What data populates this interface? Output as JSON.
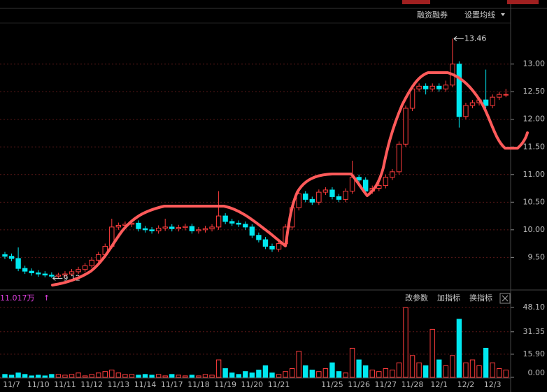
{
  "toolbar": {
    "margin": "融资融券",
    "ma_setting": "设置均线"
  },
  "chart_data": [
    {
      "type": "candlestick",
      "categories": [
        null,
        "11/7",
        null,
        null,
        null,
        "11/10",
        null,
        null,
        null,
        "11/11",
        null,
        null,
        null,
        "11/12",
        null,
        null,
        null,
        "11/13",
        null,
        null,
        null,
        "11/14",
        null,
        null,
        null,
        "11/17",
        null,
        null,
        null,
        "11/18",
        null,
        null,
        null,
        "11/19",
        null,
        null,
        null,
        "11/20",
        null,
        null,
        null,
        "11/21",
        null,
        null,
        null,
        null,
        null,
        null,
        null,
        "11/25",
        null,
        null,
        null,
        "11/26",
        null,
        null,
        null,
        "11/27",
        null,
        null,
        null,
        "11/28",
        null,
        null,
        null,
        "12/1",
        null,
        null,
        null,
        "12/2",
        null,
        null,
        null,
        "12/3",
        null,
        null
      ],
      "open": [
        9.55,
        9.52,
        9.48,
        9.3,
        9.25,
        9.22,
        9.2,
        9.18,
        9.16,
        9.18,
        9.2,
        9.24,
        9.28,
        9.35,
        9.45,
        9.55,
        9.7,
        10.05,
        10.08,
        10.1,
        10.12,
        10.02,
        10.0,
        9.98,
        10.03,
        10.05,
        10.02,
        10.04,
        10.06,
        9.98,
        10.0,
        10.02,
        10.05,
        10.25,
        10.15,
        10.12,
        10.1,
        10.05,
        9.9,
        9.82,
        9.7,
        9.65,
        9.75,
        10.05,
        10.4,
        10.65,
        10.55,
        10.5,
        10.68,
        10.72,
        10.6,
        10.55,
        10.7,
        10.95,
        10.9,
        10.7,
        10.75,
        10.8,
        10.95,
        11.05,
        11.55,
        12.2,
        12.55,
        12.6,
        12.55,
        12.6,
        12.55,
        12.62,
        13.0,
        12.05,
        12.25,
        12.3,
        12.35,
        12.25,
        12.4,
        12.45
      ],
      "high": [
        9.6,
        9.57,
        9.68,
        9.35,
        9.3,
        9.27,
        9.25,
        9.23,
        9.22,
        9.25,
        9.29,
        9.33,
        9.4,
        9.5,
        9.6,
        9.75,
        10.2,
        10.13,
        10.15,
        10.17,
        10.17,
        10.07,
        10.05,
        10.08,
        10.2,
        10.1,
        10.09,
        10.11,
        10.11,
        10.05,
        10.07,
        10.1,
        10.7,
        10.3,
        10.2,
        10.17,
        10.15,
        10.1,
        9.95,
        9.87,
        9.75,
        9.8,
        10.1,
        10.45,
        10.7,
        10.7,
        10.6,
        10.73,
        10.77,
        10.77,
        10.65,
        10.75,
        11.25,
        11.0,
        10.95,
        10.8,
        10.85,
        11.0,
        11.1,
        11.6,
        12.25,
        12.6,
        12.65,
        12.65,
        12.65,
        12.65,
        12.7,
        13.46,
        13.05,
        12.3,
        12.35,
        12.4,
        12.9,
        12.45,
        12.5,
        12.55
      ],
      "low": [
        9.47,
        9.43,
        9.25,
        9.2,
        9.17,
        9.15,
        9.14,
        9.13,
        9.12,
        9.14,
        9.16,
        9.2,
        9.24,
        9.31,
        9.41,
        9.5,
        9.66,
        10.0,
        10.03,
        10.05,
        9.97,
        9.95,
        9.93,
        9.93,
        9.98,
        9.97,
        9.97,
        9.99,
        9.93,
        9.93,
        9.95,
        9.97,
        10.0,
        10.1,
        10.07,
        10.05,
        10.0,
        9.85,
        9.77,
        9.65,
        9.6,
        9.6,
        9.7,
        10.0,
        10.35,
        10.5,
        10.45,
        10.45,
        10.63,
        10.55,
        10.5,
        10.5,
        10.65,
        10.85,
        10.65,
        10.65,
        10.7,
        10.75,
        10.9,
        11.0,
        11.5,
        12.15,
        12.5,
        12.45,
        12.5,
        12.5,
        12.5,
        12.58,
        11.85,
        12.0,
        12.2,
        12.25,
        12.2,
        12.2,
        12.35,
        12.4
      ],
      "close": [
        9.52,
        9.48,
        9.3,
        9.25,
        9.22,
        9.2,
        9.18,
        9.16,
        9.18,
        9.2,
        9.24,
        9.28,
        9.35,
        9.45,
        9.55,
        9.7,
        10.05,
        10.08,
        10.1,
        10.12,
        10.02,
        10.0,
        9.98,
        10.03,
        10.05,
        10.02,
        10.04,
        10.06,
        9.98,
        10.0,
        10.02,
        10.05,
        10.25,
        10.15,
        10.12,
        10.1,
        10.05,
        9.9,
        9.82,
        9.7,
        9.65,
        9.75,
        10.05,
        10.4,
        10.65,
        10.55,
        10.5,
        10.68,
        10.72,
        10.6,
        10.55,
        10.7,
        10.95,
        10.9,
        10.7,
        10.75,
        10.8,
        10.95,
        11.05,
        11.55,
        12.2,
        12.55,
        12.6,
        12.55,
        12.6,
        12.55,
        12.62,
        13.0,
        12.05,
        12.25,
        12.3,
        12.35,
        12.25,
        12.4,
        12.45,
        12.45
      ],
      "up_color": "#ff3c3c",
      "down_color": "#00e8f0",
      "high_label": "13.46",
      "low_label": "9.12",
      "ylim": [
        8.91,
        14.16
      ],
      "yticks": [
        {
          "value": 9.5,
          "label": "9.50"
        },
        {
          "value": 10,
          "label": "10.00"
        },
        {
          "value": 10.5,
          "label": "10.50"
        },
        {
          "value": 11,
          "label": "11.00"
        },
        {
          "value": 11.5,
          "label": "11.50"
        },
        {
          "value": 12,
          "label": "12.00"
        },
        {
          "value": 12.5,
          "label": "12.50"
        },
        {
          "value": 13,
          "label": "13.00"
        }
      ],
      "grid": true
    },
    {
      "type": "bar",
      "header": "11.017万",
      "buttons": [
        "改参数",
        "加指标",
        "换指标"
      ],
      "values": [
        2,
        1.5,
        3,
        2,
        1,
        1.5,
        1,
        2,
        2,
        1.5,
        2,
        3,
        1,
        2,
        3,
        4,
        5,
        3,
        2,
        2,
        1.5,
        2,
        1.5,
        2,
        1,
        2,
        1.5,
        1,
        1.5,
        1,
        2,
        1.5,
        12,
        6,
        3,
        2,
        4,
        3,
        5,
        8,
        3,
        2,
        4,
        6,
        18,
        8,
        5,
        4,
        6,
        10,
        4,
        3,
        20,
        12,
        8,
        5,
        4,
        6,
        5,
        10,
        48,
        15,
        10,
        8,
        33,
        12,
        8,
        15,
        40,
        10,
        12,
        8,
        20,
        10,
        6,
        5
      ],
      "ylim": [
        0,
        60.1
      ],
      "yticks": [
        {
          "value": 0,
          "label": "0.00"
        },
        {
          "value": 15.9,
          "label": "15.90"
        },
        {
          "value": 31.35,
          "label": "31.35"
        },
        {
          "value": 48.1,
          "label": "48.10"
        }
      ],
      "grid": true
    }
  ]
}
